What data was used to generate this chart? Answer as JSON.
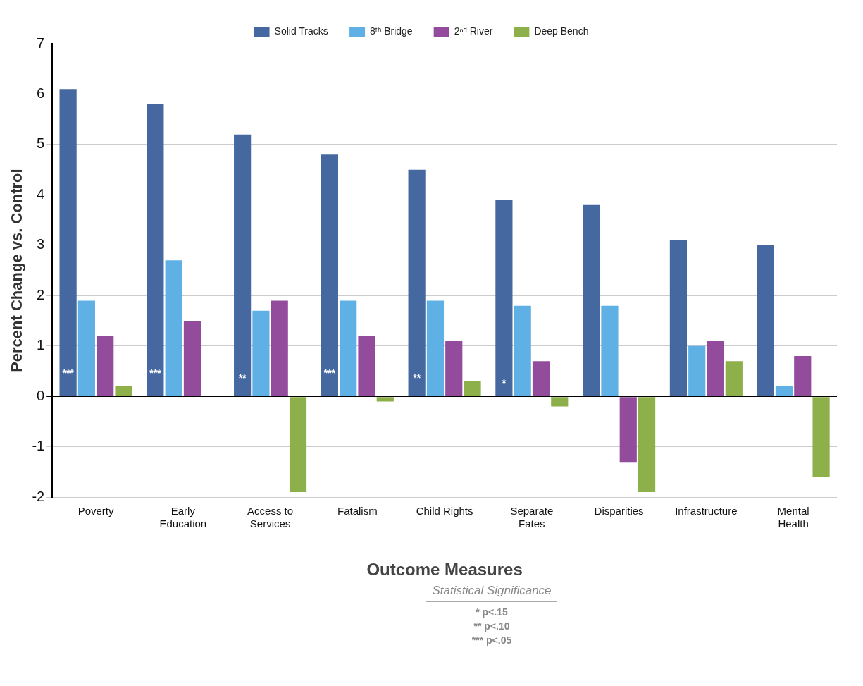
{
  "chart_data": {
    "type": "bar",
    "xlabel": "Outcome Measures",
    "ylabel": "Percent Change vs. Control",
    "categories": [
      "Poverty",
      "Early Education",
      "Access to Services",
      "Fatalism",
      "Child Rights",
      "Separate Fates",
      "Disparities",
      "Infrastructure",
      "Mental Health"
    ],
    "series": [
      {
        "name": "Solid Tracks",
        "color": "#44689f",
        "values": [
          6.1,
          5.8,
          5.2,
          4.8,
          4.5,
          3.9,
          3.8,
          3.1,
          3.0
        ]
      },
      {
        "name": "8ᵗʰ Bridge",
        "color": "#5eb0e5",
        "values": [
          1.9,
          2.7,
          1.7,
          1.9,
          1.9,
          1.8,
          1.8,
          1.0,
          0.2
        ]
      },
      {
        "name": "2ⁿᵈ River",
        "color": "#934c9b",
        "values": [
          1.2,
          1.5,
          1.9,
          1.2,
          1.1,
          0.7,
          -1.3,
          1.1,
          0.8
        ]
      },
      {
        "name": "Deep Bench",
        "color": "#8db04a",
        "values": [
          0.2,
          0,
          -1.9,
          -0.1,
          0.3,
          -0.2,
          -1.9,
          0.7,
          -1.6
        ]
      }
    ],
    "ylim": [
      -2,
      7
    ],
    "yticks": [
      -2,
      -1,
      0,
      1,
      2,
      3,
      4,
      5,
      6,
      7
    ],
    "grid": "y",
    "legend": "top",
    "annotations": [
      {
        "text": "***",
        "x": "Poverty",
        "y": 0.45
      },
      {
        "text": "***",
        "x": "Early Education",
        "y": 0.45
      },
      {
        "text": "**",
        "x": "Access to Services",
        "y": 0.35
      },
      {
        "text": "***",
        "x": "Fatalism",
        "y": 0.45
      },
      {
        "text": "**",
        "x": "Child Rights",
        "y": 0.35
      },
      {
        "text": "*",
        "x": "Separate Fates",
        "y": 0.25
      },
      "Statistical Significance",
      "* p<.15",
      "** p<.10",
      "*** p<.05"
    ]
  }
}
